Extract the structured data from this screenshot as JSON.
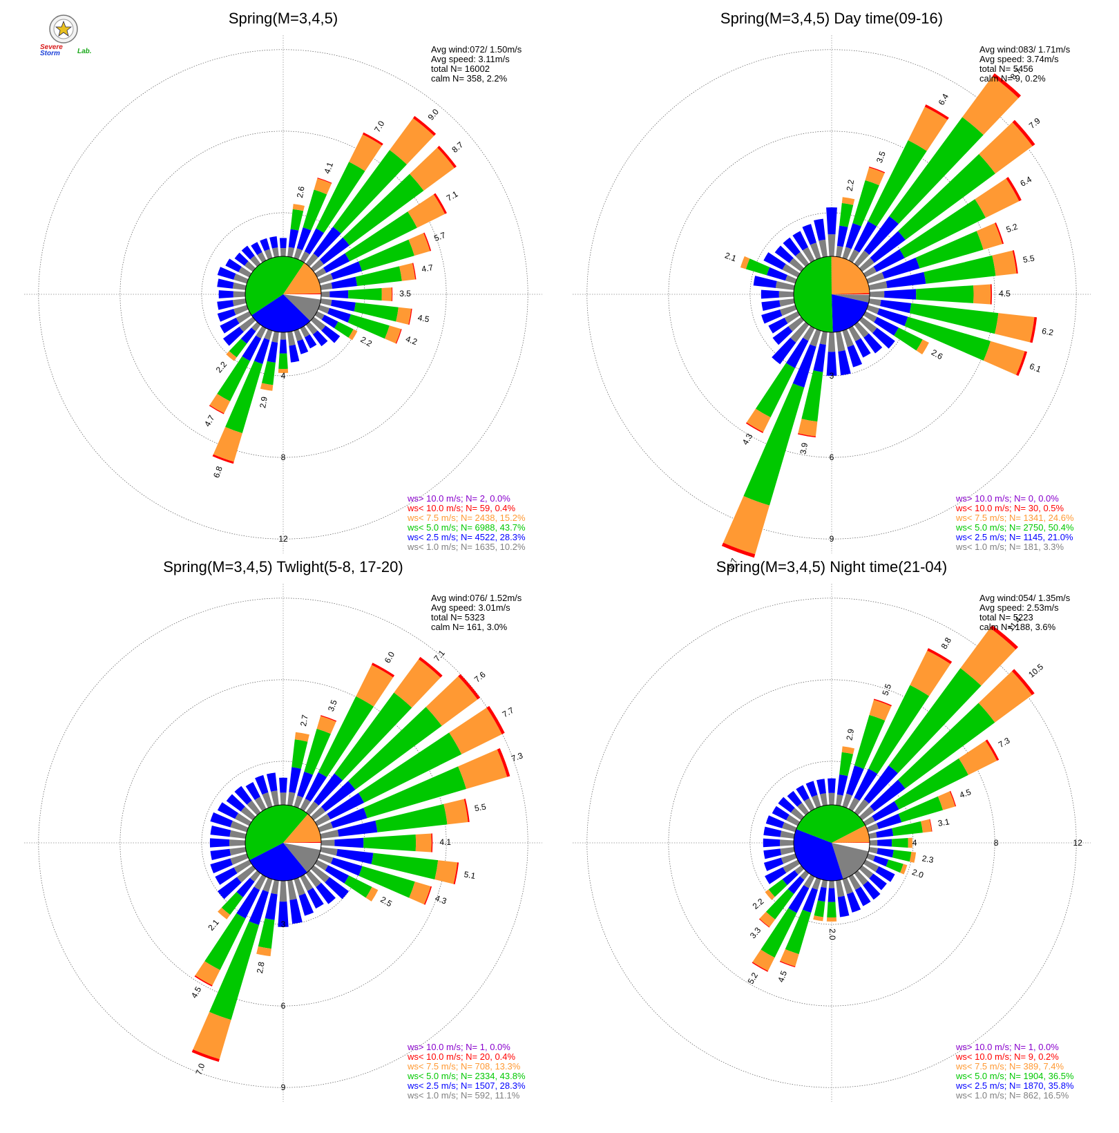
{
  "logo": {
    "word1": "Severe",
    "word2": "Storm",
    "word3": "Lab.",
    "colors": {
      "severe": "#d81b1b",
      "storm": "#1a3fd8",
      "lab": "#18a818"
    }
  },
  "colors": {
    "calm_sector": "#ffffff",
    "lt1": "#808080",
    "lt2_5": "#0000ff",
    "lt5": "#00c800",
    "lt7_5": "#ff9933",
    "lt10": "#ff0000",
    "gt10": "#8800cc",
    "grid": "#555555",
    "axis": "#888888"
  },
  "chart_data": [
    {
      "type": "windrose",
      "title": "Spring(M=3,4,5)",
      "stats": [
        "Avg wind:072/ 1.50m/s",
        "Avg speed: 3.11m/s",
        "total N=      16002",
        "calm N=    358,  2.2%"
      ],
      "ring_values": [
        4,
        8,
        12
      ],
      "ring_labels": [
        "4",
        "8",
        "12"
      ],
      "directions_deg_step": 10,
      "bars": [
        {
          "dir": 0,
          "total": 0.9
        },
        {
          "dir": 10,
          "total": 2.6,
          "label": "2.6"
        },
        {
          "dir": 20,
          "total": 4.1,
          "label": "4.1"
        },
        {
          "dir": 30,
          "total": 7.0,
          "label": "7.0"
        },
        {
          "dir": 40,
          "total": 9.0,
          "label": "9.0"
        },
        {
          "dir": 50,
          "total": 8.7,
          "label": "8.7"
        },
        {
          "dir": 60,
          "total": 7.1,
          "label": "7.1"
        },
        {
          "dir": 70,
          "total": 5.7,
          "label": "5.7"
        },
        {
          "dir": 80,
          "total": 4.7,
          "label": "4.7"
        },
        {
          "dir": 90,
          "total": 3.5,
          "label": "3.5"
        },
        {
          "dir": 100,
          "total": 4.5,
          "label": "4.5"
        },
        {
          "dir": 110,
          "total": 4.2,
          "label": "4.2"
        },
        {
          "dir": 120,
          "total": 2.2,
          "label": "2.2"
        },
        {
          "dir": 130,
          "total": 1.6
        },
        {
          "dir": 140,
          "total": 1.3
        },
        {
          "dir": 150,
          "total": 1.1
        },
        {
          "dir": 160,
          "total": 1.2
        },
        {
          "dir": 170,
          "total": 1.5
        },
        {
          "dir": 180,
          "total": 2.0
        },
        {
          "dir": 190,
          "total": 2.9,
          "label": "2.9"
        },
        {
          "dir": 200,
          "total": 6.8,
          "label": "6.8"
        },
        {
          "dir": 210,
          "total": 4.7,
          "label": "4.7"
        },
        {
          "dir": 220,
          "total": 2.2,
          "label": "2.2"
        },
        {
          "dir": 230,
          "total": 1.8
        },
        {
          "dir": 240,
          "total": 1.6
        },
        {
          "dir": 250,
          "total": 1.5
        },
        {
          "dir": 260,
          "total": 1.4
        },
        {
          "dir": 270,
          "total": 1.3
        },
        {
          "dir": 280,
          "total": 1.4
        },
        {
          "dir": 290,
          "total": 1.5
        },
        {
          "dir": 300,
          "total": 1.3
        },
        {
          "dir": 310,
          "total": 1.1
        },
        {
          "dir": 320,
          "total": 1.1
        },
        {
          "dir": 330,
          "total": 1.0
        },
        {
          "dir": 340,
          "total": 1.0
        },
        {
          "dir": 350,
          "total": 1.0
        }
      ],
      "legend": [
        {
          "text": "ws> 10.0 m/s; N=     2,  0.0%",
          "class": "gt10"
        },
        {
          "text": "ws< 10.0 m/s; N=    59,  0.4%",
          "class": "lt10"
        },
        {
          "text": "ws<  7.5 m/s; N=  2438, 15.2%",
          "class": "lt7_5"
        },
        {
          "text": "ws<  5.0 m/s; N=  6988, 43.7%",
          "class": "lt5"
        },
        {
          "text": "ws<  2.5 m/s; N=  4522, 28.3%",
          "class": "lt2_5"
        },
        {
          "text": "ws<  1.0 m/s; N=  1635, 10.2%",
          "class": "lt1"
        }
      ],
      "pie": [
        2.2,
        10.2,
        28.3,
        43.7,
        15.2,
        0.4
      ]
    },
    {
      "type": "windrose",
      "title": "Spring(M=3,4,5) Day time(09-16)",
      "stats": [
        "Avg wind:083/ 1.71m/s",
        "Avg speed: 3.74m/s",
        "total N=       5456",
        "calm N=      9,  0.2%"
      ],
      "ring_values": [
        3,
        6,
        9
      ],
      "ring_labels": [
        "3",
        "6",
        "9"
      ],
      "directions_deg_step": 10,
      "bars": [
        {
          "dir": 0,
          "total": 1.8
        },
        {
          "dir": 10,
          "total": 2.2,
          "label": "2.2"
        },
        {
          "dir": 20,
          "total": 3.5,
          "label": "3.5"
        },
        {
          "dir": 30,
          "total": 6.4,
          "label": "6.4"
        },
        {
          "dir": 40,
          "total": 8.7,
          "label": "8.7"
        },
        {
          "dir": 50,
          "total": 7.9,
          "label": "7.9"
        },
        {
          "dir": 60,
          "total": 6.4,
          "label": "6.4"
        },
        {
          "dir": 70,
          "total": 5.2,
          "label": "5.2"
        },
        {
          "dir": 80,
          "total": 5.5,
          "label": "5.5"
        },
        {
          "dir": 90,
          "total": 4.5,
          "label": "4.5"
        },
        {
          "dir": 100,
          "total": 6.2,
          "label": "6.2"
        },
        {
          "dir": 110,
          "total": 6.1,
          "label": "6.1"
        },
        {
          "dir": 120,
          "total": 2.6,
          "label": "2.6"
        },
        {
          "dir": 130,
          "total": 1.5
        },
        {
          "dir": 140,
          "total": 1.3
        },
        {
          "dir": 150,
          "total": 1.2
        },
        {
          "dir": 160,
          "total": 1.4
        },
        {
          "dir": 170,
          "total": 1.6
        },
        {
          "dir": 180,
          "total": 1.6
        },
        {
          "dir": 190,
          "total": 3.9,
          "label": "3.9"
        },
        {
          "dir": 200,
          "total": 8.7,
          "label": "8.7"
        },
        {
          "dir": 210,
          "total": 4.3,
          "label": "4.3"
        },
        {
          "dir": 220,
          "total": 1.8
        },
        {
          "dir": 230,
          "total": 1.3
        },
        {
          "dir": 240,
          "total": 1.2
        },
        {
          "dir": 250,
          "total": 1.3
        },
        {
          "dir": 260,
          "total": 1.2
        },
        {
          "dir": 270,
          "total": 1.2
        },
        {
          "dir": 280,
          "total": 1.5
        },
        {
          "dir": 290,
          "total": 2.1,
          "label": "2.1"
        },
        {
          "dir": 300,
          "total": 1.4
        },
        {
          "dir": 310,
          "total": 1.2
        },
        {
          "dir": 320,
          "total": 1.2
        },
        {
          "dir": 330,
          "total": 1.2
        },
        {
          "dir": 340,
          "total": 1.3
        },
        {
          "dir": 350,
          "total": 1.4
        }
      ],
      "legend": [
        {
          "text": "ws> 10.0 m/s; N=     0,  0.0%",
          "class": "gt10"
        },
        {
          "text": "ws< 10.0 m/s; N=    30,  0.5%",
          "class": "lt10"
        },
        {
          "text": "ws<  7.5 m/s; N=  1341, 24.6%",
          "class": "lt7_5"
        },
        {
          "text": "ws<  5.0 m/s; N=  2750, 50.4%",
          "class": "lt5"
        },
        {
          "text": "ws<  2.5 m/s; N=  1145, 21.0%",
          "class": "lt2_5"
        },
        {
          "text": "ws<  1.0 m/s; N=   181,  3.3%",
          "class": "lt1"
        }
      ],
      "pie": [
        0.2,
        3.3,
        21.0,
        50.4,
        24.6,
        0.5
      ]
    },
    {
      "type": "windrose",
      "title": "Spring(M=3,4,5) Twlight(5-8, 17-20)",
      "stats": [
        "Avg wind:076/ 1.52m/s",
        "Avg speed: 3.01m/s",
        "total N=       5323",
        "calm N=    161,  3.0%"
      ],
      "ring_values": [
        3,
        6,
        9
      ],
      "ring_labels": [
        "3",
        "6",
        "9"
      ],
      "directions_deg_step": 10,
      "bars": [
        {
          "dir": 0,
          "total": 1.0
        },
        {
          "dir": 10,
          "total": 2.7,
          "label": "2.7"
        },
        {
          "dir": 20,
          "total": 3.5,
          "label": "3.5"
        },
        {
          "dir": 30,
          "total": 6.0,
          "label": "6.0"
        },
        {
          "dir": 40,
          "total": 7.1,
          "label": "7.1"
        },
        {
          "dir": 50,
          "total": 7.6,
          "label": "7.6"
        },
        {
          "dir": 60,
          "total": 7.7,
          "label": "7.7"
        },
        {
          "dir": 70,
          "total": 7.3,
          "label": "7.3"
        },
        {
          "dir": 80,
          "total": 5.5,
          "label": "5.5"
        },
        {
          "dir": 90,
          "total": 4.1,
          "label": "4.1"
        },
        {
          "dir": 100,
          "total": 5.1,
          "label": "5.1"
        },
        {
          "dir": 110,
          "total": 4.3,
          "label": "4.3"
        },
        {
          "dir": 120,
          "total": 2.5,
          "label": "2.5"
        },
        {
          "dir": 130,
          "total": 1.6
        },
        {
          "dir": 140,
          "total": 1.4
        },
        {
          "dir": 150,
          "total": 1.3
        },
        {
          "dir": 160,
          "total": 1.4
        },
        {
          "dir": 170,
          "total": 1.6
        },
        {
          "dir": 180,
          "total": 1.7
        },
        {
          "dir": 190,
          "total": 2.8,
          "label": "2.8"
        },
        {
          "dir": 200,
          "total": 7.0,
          "label": "7.0"
        },
        {
          "dir": 210,
          "total": 4.5,
          "label": "4.5"
        },
        {
          "dir": 220,
          "total": 2.1,
          "label": "2.1"
        },
        {
          "dir": 230,
          "total": 1.6
        },
        {
          "dir": 240,
          "total": 1.4
        },
        {
          "dir": 250,
          "total": 1.4
        },
        {
          "dir": 260,
          "total": 1.3
        },
        {
          "dir": 270,
          "total": 1.3
        },
        {
          "dir": 280,
          "total": 1.3
        },
        {
          "dir": 290,
          "total": 1.4
        },
        {
          "dir": 300,
          "total": 1.3
        },
        {
          "dir": 310,
          "total": 1.2
        },
        {
          "dir": 320,
          "total": 1.2
        },
        {
          "dir": 330,
          "total": 1.1
        },
        {
          "dir": 340,
          "total": 1.2
        },
        {
          "dir": 350,
          "total": 1.2
        }
      ],
      "legend": [
        {
          "text": "ws> 10.0 m/s; N=     1,  0.0%",
          "class": "gt10"
        },
        {
          "text": "ws< 10.0 m/s; N=    20,  0.4%",
          "class": "lt10"
        },
        {
          "text": "ws<  7.5 m/s; N=   708, 13.3%",
          "class": "lt7_5"
        },
        {
          "text": "ws<  5.0 m/s; N=  2334, 43.8%",
          "class": "lt5"
        },
        {
          "text": "ws<  2.5 m/s; N=  1507, 28.3%",
          "class": "lt2_5"
        },
        {
          "text": "ws<  1.0 m/s; N=   592, 11.1%",
          "class": "lt1"
        }
      ],
      "pie": [
        3.0,
        11.1,
        28.3,
        43.8,
        13.3,
        0.4
      ]
    },
    {
      "type": "windrose",
      "title": "Spring(M=3,4,5) Night time(21-04)",
      "stats": [
        "Avg wind:054/ 1.35m/s",
        "Avg speed: 2.53m/s",
        "total N=       5223",
        "calm N=    188,  3.6%"
      ],
      "ring_values": [
        4,
        8,
        12
      ],
      "ring_labels": [
        "4",
        "8",
        "12"
      ],
      "ring_label_side": "east",
      "directions_deg_step": 10,
      "bars": [
        {
          "dir": 0,
          "total": 1.3
        },
        {
          "dir": 10,
          "total": 2.9,
          "label": "2.9"
        },
        {
          "dir": 20,
          "total": 5.5,
          "label": "5.5"
        },
        {
          "dir": 30,
          "total": 8.8,
          "label": "8.8"
        },
        {
          "dir": 40,
          "total": 11.4,
          "label": "11.4"
        },
        {
          "dir": 50,
          "total": 10.5,
          "label": "10.5"
        },
        {
          "dir": 60,
          "total": 7.3,
          "label": "7.3"
        },
        {
          "dir": 70,
          "total": 4.5,
          "label": "4.5"
        },
        {
          "dir": 80,
          "total": 3.1,
          "label": "3.1"
        },
        {
          "dir": 90,
          "total": 2.1
        },
        {
          "dir": 100,
          "total": 2.3,
          "label": "2.3"
        },
        {
          "dir": 110,
          "total": 2.0,
          "label": "2.0"
        },
        {
          "dir": 120,
          "total": 1.6
        },
        {
          "dir": 130,
          "total": 1.5
        },
        {
          "dir": 140,
          "total": 1.6
        },
        {
          "dir": 150,
          "total": 1.6
        },
        {
          "dir": 160,
          "total": 1.7
        },
        {
          "dir": 170,
          "total": 1.8
        },
        {
          "dir": 180,
          "total": 2.0,
          "label": "2.0"
        },
        {
          "dir": 190,
          "total": 2.0
        },
        {
          "dir": 200,
          "total": 4.5,
          "label": "4.5"
        },
        {
          "dir": 210,
          "total": 5.2,
          "label": "5.2"
        },
        {
          "dir": 220,
          "total": 3.3,
          "label": "3.3"
        },
        {
          "dir": 230,
          "total": 2.2,
          "label": "2.2"
        },
        {
          "dir": 240,
          "total": 1.8
        },
        {
          "dir": 250,
          "total": 1.6
        },
        {
          "dir": 260,
          "total": 1.5
        },
        {
          "dir": 270,
          "total": 1.5
        },
        {
          "dir": 280,
          "total": 1.5
        },
        {
          "dir": 290,
          "total": 1.5
        },
        {
          "dir": 300,
          "total": 1.4
        },
        {
          "dir": 310,
          "total": 1.4
        },
        {
          "dir": 320,
          "total": 1.3
        },
        {
          "dir": 330,
          "total": 1.3
        },
        {
          "dir": 340,
          "total": 1.3
        },
        {
          "dir": 350,
          "total": 1.3
        }
      ],
      "legend": [
        {
          "text": "ws> 10.0 m/s; N=     1,  0.0%",
          "class": "gt10"
        },
        {
          "text": "ws< 10.0 m/s; N=     9,  0.2%",
          "class": "lt10"
        },
        {
          "text": "ws<  7.5 m/s; N=   389,  7.4%",
          "class": "lt7_5"
        },
        {
          "text": "ws<  5.0 m/s; N=  1904, 36.5%",
          "class": "lt5"
        },
        {
          "text": "ws<  2.5 m/s; N=  1870, 35.8%",
          "class": "lt2_5"
        },
        {
          "text": "ws<  1.0 m/s; N=   862, 16.5%",
          "class": "lt1"
        }
      ],
      "pie": [
        3.6,
        16.5,
        35.8,
        36.5,
        7.4,
        0.2
      ]
    }
  ]
}
